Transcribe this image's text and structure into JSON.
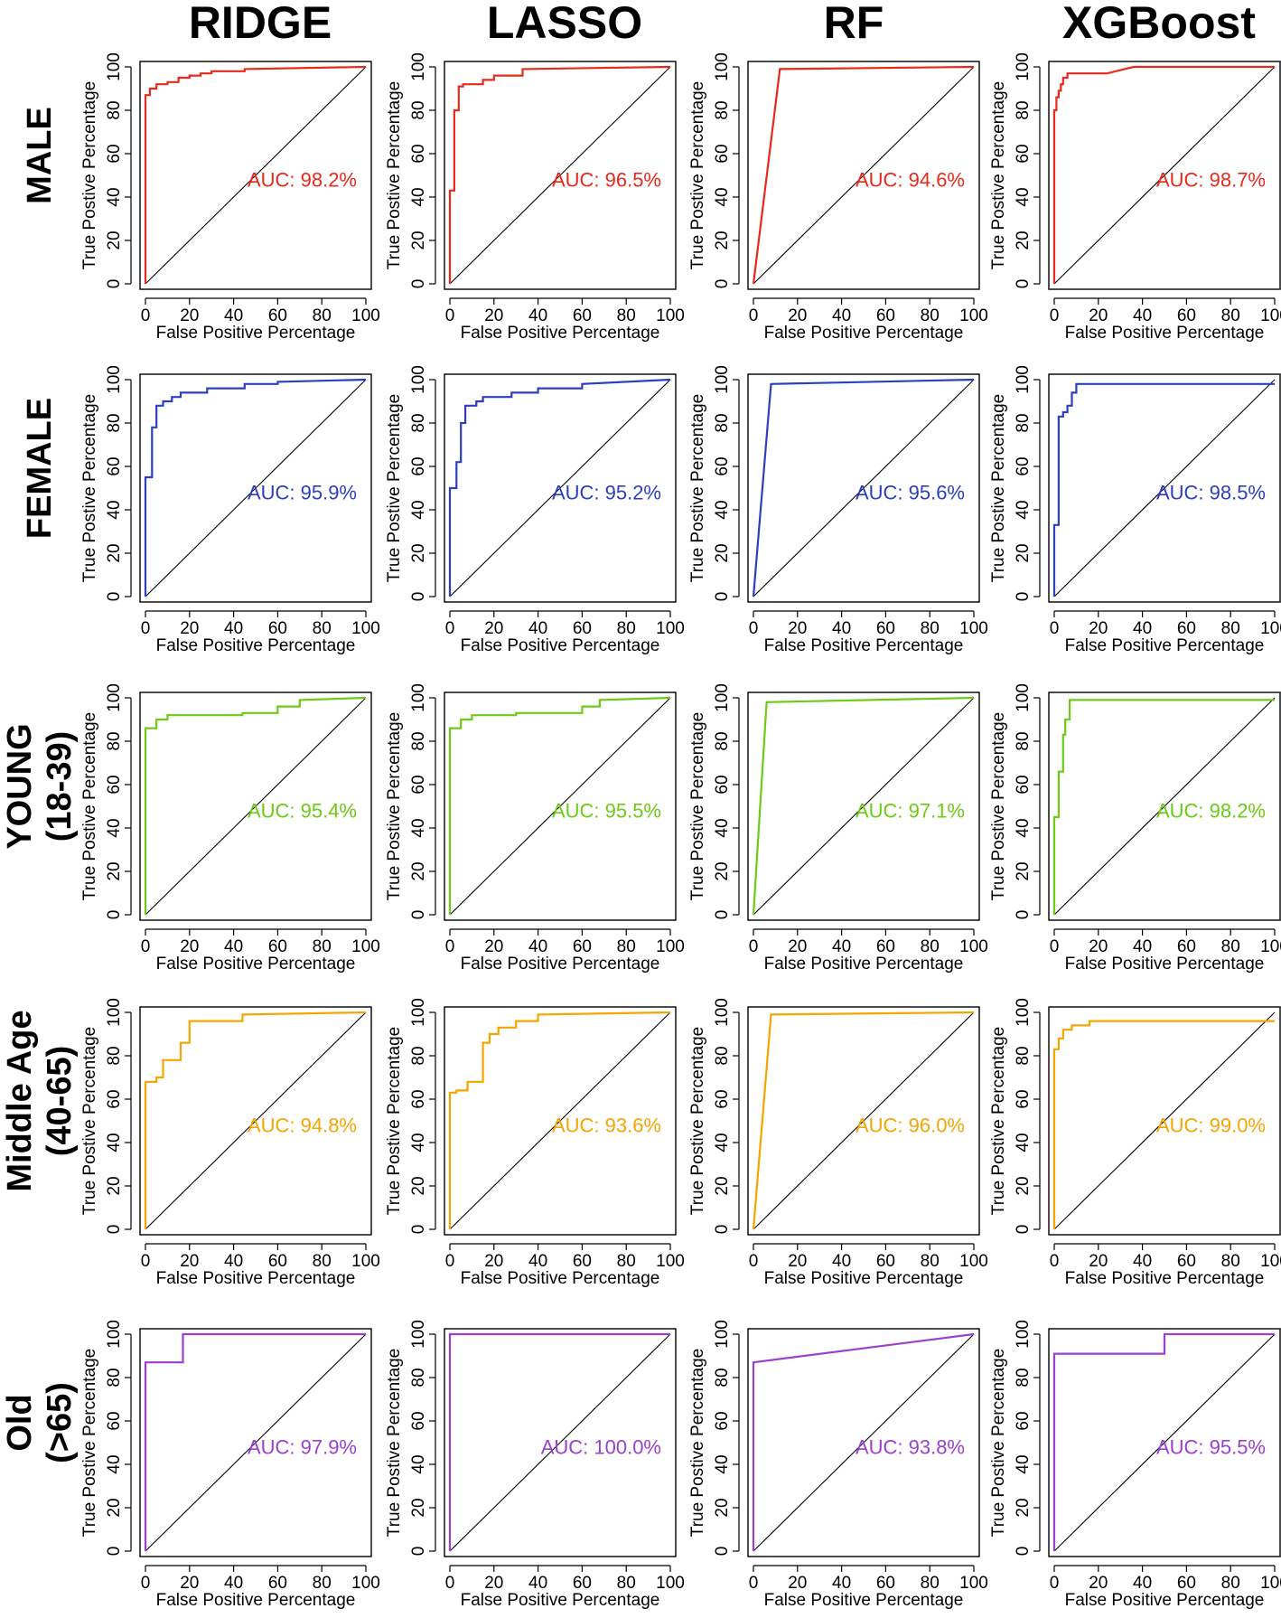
{
  "chart_data": {
    "type": "line",
    "description_free": true,
    "columns": [
      "RIDGE",
      "LASSO",
      "RF",
      "XGBoost"
    ],
    "rows": [
      {
        "lines": [
          "MALE"
        ],
        "color": "#e8291c"
      },
      {
        "lines": [
          "FEMALE"
        ],
        "color": "#2b3fbf"
      },
      {
        "lines": [
          "YOUNG",
          "(18-39)"
        ],
        "color": "#6ccb12"
      },
      {
        "lines": [
          "Middle Age",
          "(40-65)"
        ],
        "color": "#f5a500"
      },
      {
        "lines": [
          "Old",
          "(>65)"
        ],
        "color": "#9b3fcf"
      }
    ],
    "xlabel": "False Positive Percentage",
    "ylabel": "True Postive Percentage",
    "xlim": [
      0,
      100
    ],
    "ylim": [
      0,
      100
    ],
    "xticks": [
      "0",
      "20",
      "40",
      "60",
      "80",
      "100"
    ],
    "yticks": [
      "0",
      "20",
      "40",
      "60",
      "80",
      "100"
    ],
    "panels": [
      [
        {
          "auc": "AUC: 98.2%",
          "x": [
            0,
            0,
            2,
            2,
            5,
            5,
            10,
            10,
            15,
            15,
            20,
            20,
            25,
            25,
            30,
            30,
            45,
            45,
            100
          ],
          "y": [
            0,
            87,
            87,
            90,
            90,
            92,
            92,
            93,
            93,
            95,
            95,
            96,
            96,
            97,
            97,
            98,
            98,
            99,
            100
          ]
        },
        {
          "auc": "AUC: 96.5%",
          "x": [
            0,
            0,
            2,
            2,
            4,
            4,
            6,
            6,
            15,
            15,
            20,
            20,
            33,
            33,
            100
          ],
          "y": [
            0,
            43,
            43,
            80,
            80,
            91,
            91,
            92,
            92,
            94,
            94,
            96,
            96,
            99,
            100
          ]
        },
        {
          "auc": "AUC: 94.6%",
          "x": [
            0,
            12,
            100
          ],
          "y": [
            0,
            99,
            100
          ]
        },
        {
          "auc": "AUC: 98.7%",
          "x": [
            0,
            0,
            1,
            1,
            2,
            2,
            3,
            3,
            4,
            4,
            6,
            6,
            24,
            36,
            100
          ],
          "y": [
            0,
            80,
            80,
            86,
            86,
            89,
            89,
            92,
            92,
            95,
            95,
            97,
            97,
            100,
            100
          ]
        }
      ],
      [
        {
          "auc": "AUC: 95.9%",
          "x": [
            0,
            0,
            3,
            3,
            5,
            5,
            8,
            8,
            12,
            12,
            16,
            16,
            28,
            28,
            45,
            45,
            60,
            60,
            100
          ],
          "y": [
            0,
            55,
            55,
            78,
            78,
            88,
            88,
            90,
            90,
            92,
            92,
            94,
            94,
            96,
            96,
            98,
            98,
            99,
            100
          ]
        },
        {
          "auc": "AUC: 95.2%",
          "x": [
            0,
            0,
            3,
            3,
            5,
            5,
            7,
            7,
            12,
            12,
            15,
            15,
            28,
            28,
            40,
            40,
            60,
            60,
            100
          ],
          "y": [
            0,
            50,
            50,
            62,
            62,
            80,
            80,
            88,
            88,
            90,
            90,
            92,
            92,
            94,
            94,
            96,
            96,
            98,
            100
          ]
        },
        {
          "auc": "AUC: 95.6%",
          "x": [
            0,
            8,
            100
          ],
          "y": [
            0,
            98,
            100
          ]
        },
        {
          "auc": "AUC: 98.5%",
          "x": [
            0,
            0,
            2,
            2,
            4,
            4,
            6,
            6,
            8,
            8,
            10,
            10,
            100
          ],
          "y": [
            0,
            33,
            33,
            83,
            83,
            85,
            85,
            88,
            88,
            94,
            94,
            98,
            98
          ]
        }
      ],
      [
        {
          "auc": "AUC: 95.4%",
          "x": [
            0,
            0,
            5,
            5,
            10,
            10,
            44,
            44,
            60,
            60,
            70,
            70,
            100
          ],
          "y": [
            0,
            86,
            86,
            90,
            90,
            92,
            92,
            93,
            93,
            96,
            96,
            99,
            100
          ]
        },
        {
          "auc": "AUC: 95.5%",
          "x": [
            0,
            0,
            5,
            5,
            10,
            10,
            30,
            30,
            60,
            60,
            68,
            68,
            100
          ],
          "y": [
            0,
            86,
            86,
            90,
            90,
            92,
            92,
            93,
            93,
            96,
            96,
            99,
            100
          ]
        },
        {
          "auc": "AUC: 97.1%",
          "x": [
            0,
            6,
            100
          ],
          "y": [
            0,
            98,
            100
          ]
        },
        {
          "auc": "AUC: 98.2%",
          "x": [
            0,
            0,
            2,
            2,
            4,
            4,
            5,
            5,
            7,
            7,
            100
          ],
          "y": [
            0,
            45,
            45,
            66,
            66,
            83,
            83,
            90,
            90,
            99,
            99
          ]
        }
      ],
      [
        {
          "auc": "AUC: 94.8%",
          "x": [
            0,
            0,
            5,
            5,
            8,
            8,
            16,
            16,
            20,
            20,
            44,
            44,
            100
          ],
          "y": [
            0,
            68,
            68,
            70,
            70,
            78,
            78,
            86,
            86,
            96,
            96,
            99,
            100
          ]
        },
        {
          "auc": "AUC: 93.6%",
          "x": [
            0,
            0,
            3,
            3,
            8,
            8,
            15,
            15,
            18,
            18,
            22,
            22,
            30,
            30,
            40,
            40,
            100
          ],
          "y": [
            0,
            63,
            63,
            64,
            64,
            68,
            68,
            86,
            86,
            90,
            90,
            93,
            93,
            96,
            96,
            99,
            100
          ]
        },
        {
          "auc": "AUC: 96.0%",
          "x": [
            0,
            8,
            100
          ],
          "y": [
            0,
            99,
            100
          ]
        },
        {
          "auc": "AUC: 99.0%",
          "x": [
            0,
            0,
            2,
            2,
            4,
            4,
            8,
            8,
            16,
            16,
            100
          ],
          "y": [
            0,
            83,
            83,
            88,
            88,
            92,
            92,
            94,
            94,
            96,
            96
          ]
        }
      ],
      [
        {
          "auc": "AUC: 97.9%",
          "x": [
            0,
            0,
            17,
            17,
            100
          ],
          "y": [
            0,
            87,
            87,
            100,
            100
          ]
        },
        {
          "auc": "AUC: 100.0%",
          "x": [
            0,
            0,
            100
          ],
          "y": [
            0,
            100,
            100
          ]
        },
        {
          "auc": "AUC: 93.8%",
          "x": [
            0,
            0,
            100
          ],
          "y": [
            0,
            87,
            100
          ]
        },
        {
          "auc": "AUC: 95.5%",
          "x": [
            0,
            0,
            50,
            50,
            100
          ],
          "y": [
            0,
            91,
            91,
            100,
            100
          ]
        }
      ]
    ]
  }
}
